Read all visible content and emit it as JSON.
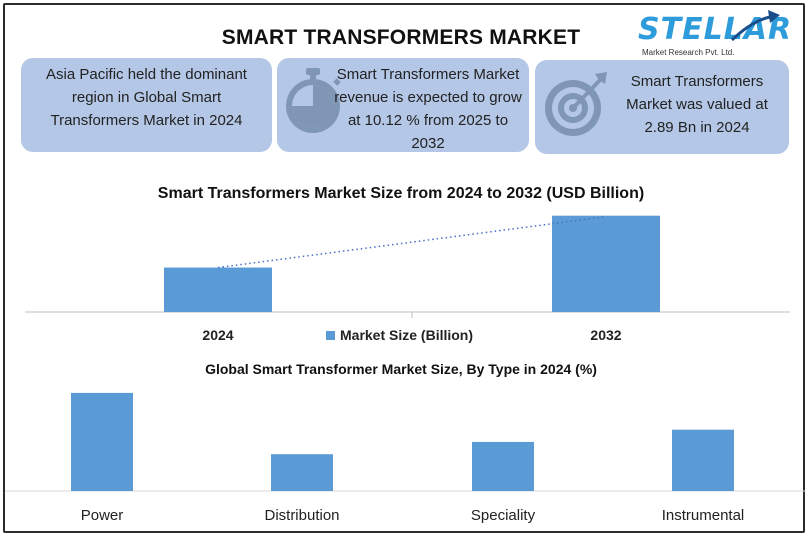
{
  "header": {
    "title": "SMART TRANSFORMERS MARKET",
    "logo": {
      "word": "STELLAR",
      "subtitle": "Market Research Pvt. Ltd.",
      "accent": "#2e9cdb"
    }
  },
  "cards": [
    {
      "text": "Asia Pacific held the dominant region in Global Smart Transformers Market in 2024",
      "icon": ""
    },
    {
      "text": "Smart Transformers Market revenue is expected to grow at 10.12 % from 2025 to 2032",
      "icon": "stopwatch-icon"
    },
    {
      "text": "Smart Transformers Market was valued at 2.89 Bn in 2024",
      "icon": "target-icon"
    }
  ],
  "chart_data": [
    {
      "type": "bar",
      "title": "Smart Transformers Market Size from 2024 to 2032 (USD Billion)",
      "categories": [
        "2024",
        "2032"
      ],
      "series": [
        {
          "name": "Market Size (Billion)",
          "values": [
            2.89,
            6.26
          ]
        }
      ],
      "legend": "bottom-center",
      "trendline": true,
      "grid": false,
      "ylim": [
        0,
        6.5
      ],
      "color": "#5b9bd5"
    },
    {
      "type": "bar",
      "title": "Global Smart Transformer Market Size, By Type in 2024 (%)",
      "categories": [
        "Power",
        "Distribution",
        "Speciality",
        "Instrumental"
      ],
      "values": [
        40,
        15,
        20,
        25
      ],
      "grid": false,
      "ylim": [
        0,
        42
      ],
      "color": "#5b9bd5"
    }
  ]
}
